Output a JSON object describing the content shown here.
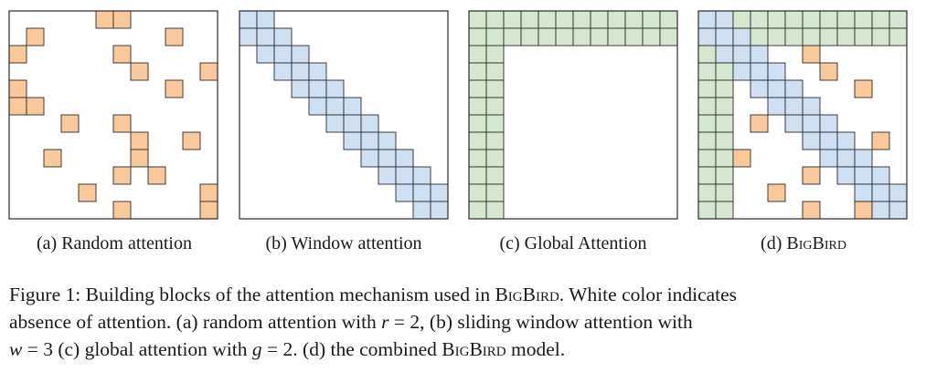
{
  "colors": {
    "random": "#f9c99a",
    "window": "#cfe0f2",
    "global": "#d5e8cf",
    "border": "#2b2b2b",
    "background": "#ffffff"
  },
  "matrix_size": 12,
  "panels": [
    {
      "id": "random",
      "label_prefix": "(a)",
      "label_name": "Random attention",
      "random_cells": [
        [
          0,
          5
        ],
        [
          0,
          6
        ],
        [
          1,
          1
        ],
        [
          1,
          9
        ],
        [
          2,
          0
        ],
        [
          2,
          6
        ],
        [
          3,
          7
        ],
        [
          3,
          11
        ],
        [
          4,
          0
        ],
        [
          4,
          9
        ],
        [
          5,
          0
        ],
        [
          5,
          1
        ],
        [
          6,
          3
        ],
        [
          6,
          6
        ],
        [
          7,
          7
        ],
        [
          7,
          10
        ],
        [
          8,
          2
        ],
        [
          8,
          7
        ],
        [
          9,
          6
        ],
        [
          9,
          8
        ],
        [
          10,
          4
        ],
        [
          10,
          11
        ],
        [
          11,
          6
        ],
        [
          11,
          11
        ]
      ]
    },
    {
      "id": "window",
      "label_prefix": "(b)",
      "label_name": "Window attention",
      "window_width": 3
    },
    {
      "id": "global",
      "label_prefix": "(c)",
      "label_name": "Global Attention",
      "global_count": 2
    },
    {
      "id": "bigbird",
      "label_prefix": "(d)",
      "label_name": "BigBird",
      "window_width": 3,
      "global_count": 2,
      "random_cells": [
        [
          2,
          6
        ],
        [
          3,
          7
        ],
        [
          4,
          9
        ],
        [
          6,
          3
        ],
        [
          7,
          10
        ],
        [
          8,
          2
        ],
        [
          9,
          6
        ],
        [
          10,
          4
        ],
        [
          11,
          6
        ],
        [
          11,
          9
        ]
      ]
    }
  ],
  "caption": {
    "line1_a": "Figure 1: Building blocks of the attention mechanism used in ",
    "model_name": "BigBird",
    "line1_b": ". White color indicates",
    "line2_a": "absence of attention. (a) random attention with ",
    "var_r": "r",
    "line2_b": " = 2, (b) sliding window attention with",
    "var_w": "w",
    "line3_a": " = 3 (c) global attention with ",
    "var_g": "g",
    "line3_b": " = 2. (d) the combined ",
    "line3_c": " model."
  }
}
